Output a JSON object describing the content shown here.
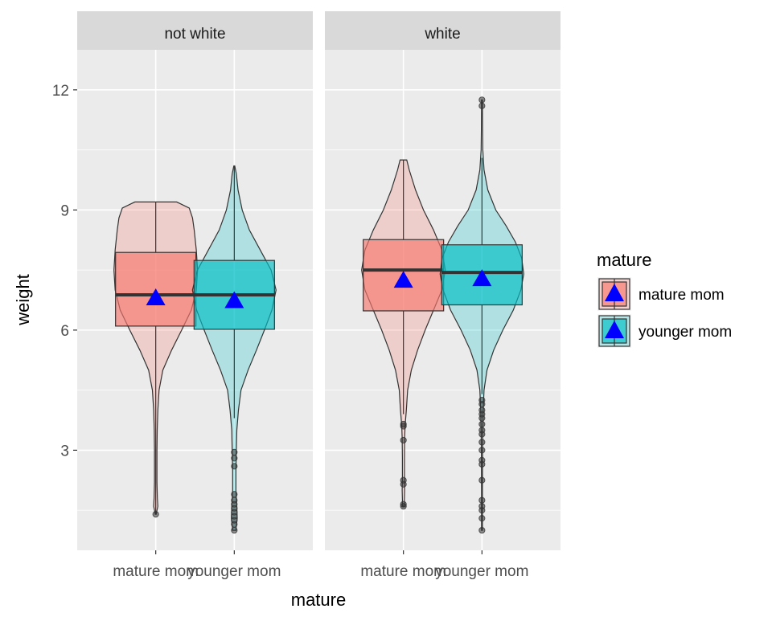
{
  "chart_data": {
    "type": "violin-box",
    "xlabel": "mature",
    "ylabel": "weight",
    "ylim": [
      0.5,
      13.0
    ],
    "yticks": [
      3,
      6,
      9,
      12
    ],
    "categories": [
      "mature mom",
      "younger mom"
    ],
    "grid": true,
    "legend": {
      "title": "mature",
      "position": "right",
      "entries": [
        {
          "label": "mature mom",
          "fill": "#F8766D"
        },
        {
          "label": "younger mom",
          "fill": "#00BFC4"
        }
      ]
    },
    "mean_marker_color": "#0000FF",
    "panels": [
      {
        "strip": "not white",
        "groups": [
          {
            "category": "mature mom",
            "fill": "#F8766D",
            "box": {
              "q1": 6.1,
              "median": 6.88,
              "q3": 7.94,
              "whisker_low": 1.4,
              "whisker_high": 9.2
            },
            "mean": 6.8,
            "violin": [
              [
                1.4,
                0.01
              ],
              [
                1.6,
                0.05
              ],
              [
                1.8,
                0.04
              ],
              [
                2.2,
                0.03
              ],
              [
                3.0,
                0.03
              ],
              [
                3.5,
                0.035
              ],
              [
                4.0,
                0.05
              ],
              [
                4.5,
                0.08
              ],
              [
                5.0,
                0.17
              ],
              [
                5.5,
                0.38
              ],
              [
                6.0,
                0.62
              ],
              [
                6.5,
                0.85
              ],
              [
                7.0,
                0.97
              ],
              [
                7.5,
                1.0
              ],
              [
                8.0,
                0.97
              ],
              [
                8.5,
                0.92
              ],
              [
                8.8,
                0.88
              ],
              [
                9.05,
                0.8
              ],
              [
                9.2,
                0.5
              ]
            ],
            "outliers": [
              1.4
            ]
          },
          {
            "category": "younger mom",
            "fill": "#00BFC4",
            "box": {
              "q1": 6.02,
              "median": 6.88,
              "q3": 7.74,
              "whisker_low": 3.8,
              "whisker_high": 10.1
            },
            "mean": 6.73,
            "violin": [
              [
                1.0,
                0.04
              ],
              [
                1.3,
                0.07
              ],
              [
                1.6,
                0.06
              ],
              [
                2.0,
                0.04
              ],
              [
                2.5,
                0.04
              ],
              [
                3.0,
                0.05
              ],
              [
                3.5,
                0.06
              ],
              [
                4.0,
                0.1
              ],
              [
                4.5,
                0.16
              ],
              [
                5.0,
                0.33
              ],
              [
                5.5,
                0.53
              ],
              [
                6.0,
                0.72
              ],
              [
                6.5,
                0.9
              ],
              [
                7.0,
                1.0
              ],
              [
                7.5,
                0.88
              ],
              [
                8.0,
                0.62
              ],
              [
                8.5,
                0.36
              ],
              [
                9.0,
                0.19
              ],
              [
                9.5,
                0.09
              ],
              [
                9.9,
                0.05
              ],
              [
                10.1,
                0.01
              ]
            ],
            "outliers": [
              1.0,
              1.15,
              1.25,
              1.35,
              1.45,
              1.55,
              1.65,
              1.75,
              1.9,
              2.6,
              2.8,
              2.95
            ]
          }
        ]
      },
      {
        "strip": "white",
        "groups": [
          {
            "category": "mature mom",
            "fill": "#F8766D",
            "box": {
              "q1": 6.48,
              "median": 7.5,
              "q3": 8.26,
              "whisker_low": 3.9,
              "whisker_high": 10.25
            },
            "mean": 7.24,
            "violin": [
              [
                1.6,
                0.02
              ],
              [
                2.0,
                0.03
              ],
              [
                2.3,
                0.025
              ],
              [
                2.8,
                0.025
              ],
              [
                3.3,
                0.03
              ],
              [
                3.6,
                0.04
              ],
              [
                4.0,
                0.07
              ],
              [
                4.5,
                0.1
              ],
              [
                5.0,
                0.19
              ],
              [
                5.5,
                0.34
              ],
              [
                6.0,
                0.52
              ],
              [
                6.5,
                0.72
              ],
              [
                7.0,
                0.92
              ],
              [
                7.5,
                1.0
              ],
              [
                8.0,
                0.92
              ],
              [
                8.5,
                0.72
              ],
              [
                9.0,
                0.48
              ],
              [
                9.5,
                0.29
              ],
              [
                10.0,
                0.14
              ],
              [
                10.25,
                0.08
              ]
            ],
            "outliers": [
              1.6,
              1.65,
              2.15,
              2.25,
              3.25,
              3.6,
              3.65
            ]
          },
          {
            "category": "younger mom",
            "fill": "#00BFC4",
            "box": {
              "q1": 6.63,
              "median": 7.44,
              "q3": 8.13,
              "whisker_low": 4.4,
              "whisker_high": 10.3
            },
            "mean": 7.28,
            "violin": [
              [
                1.0,
                0.01
              ],
              [
                2.0,
                0.01
              ],
              [
                3.0,
                0.015
              ],
              [
                3.5,
                0.02
              ],
              [
                4.0,
                0.03
              ],
              [
                4.5,
                0.05
              ],
              [
                5.0,
                0.12
              ],
              [
                5.5,
                0.28
              ],
              [
                6.0,
                0.5
              ],
              [
                6.5,
                0.75
              ],
              [
                7.0,
                0.93
              ],
              [
                7.4,
                1.0
              ],
              [
                7.8,
                0.95
              ],
              [
                8.2,
                0.8
              ],
              [
                8.6,
                0.58
              ],
              [
                9.0,
                0.33
              ],
              [
                9.5,
                0.14
              ],
              [
                10.0,
                0.05
              ],
              [
                10.5,
                0.02
              ],
              [
                11.0,
                0.015
              ],
              [
                11.5,
                0.01
              ],
              [
                11.75,
                0.01
              ]
            ],
            "outliers": [
              1.0,
              1.3,
              1.5,
              1.6,
              1.75,
              2.25,
              2.65,
              2.75,
              3.0,
              3.2,
              3.4,
              3.5,
              3.65,
              3.8,
              3.9,
              4.0,
              4.15,
              4.25,
              11.6,
              11.75
            ]
          }
        ]
      }
    ]
  }
}
